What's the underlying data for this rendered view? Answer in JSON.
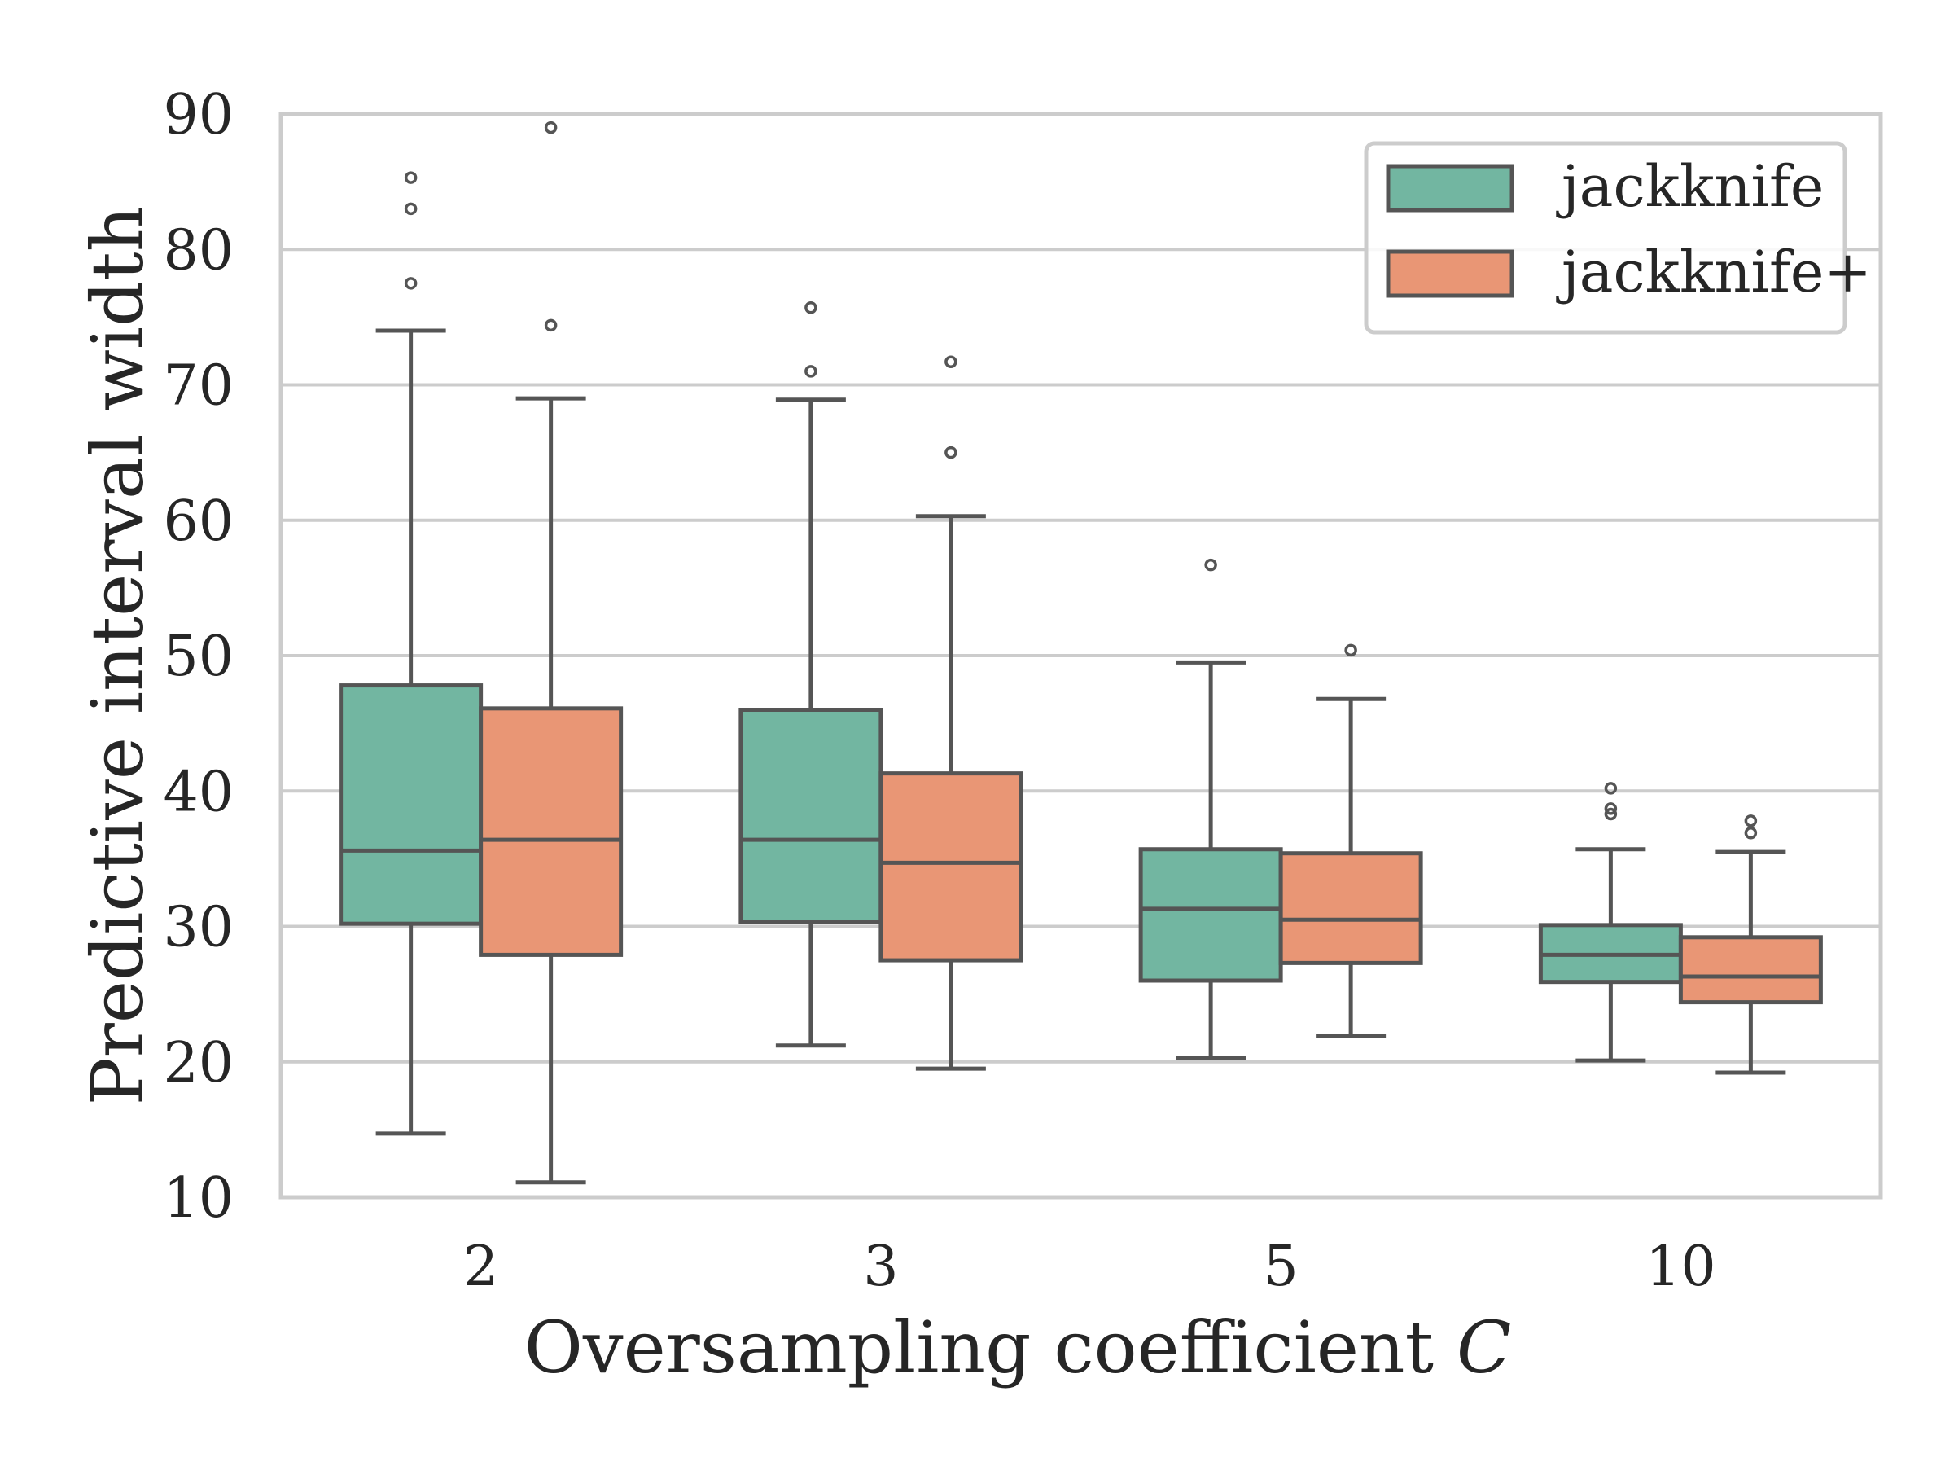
{
  "chart_data": {
    "type": "box",
    "xlabel": "Oversampling coefficient",
    "xlabel_symbol": "C",
    "ylabel": "Predictive interval width",
    "ylim": [
      10,
      90
    ],
    "yticks": [
      10,
      20,
      30,
      40,
      50,
      60,
      70,
      80,
      90
    ],
    "grid": "horizontal",
    "legend_position": "top-right",
    "categories": [
      "2",
      "3",
      "5",
      "10"
    ],
    "series": [
      {
        "name": "jackknife",
        "color": "#72b6a1",
        "boxes": [
          {
            "whislo": 14.7,
            "q1": 30.2,
            "median": 35.6,
            "q3": 47.8,
            "whishi": 74.0,
            "fliers": [
              77.5,
              83.0,
              85.3
            ]
          },
          {
            "whislo": 21.2,
            "q1": 30.3,
            "median": 36.4,
            "q3": 46.0,
            "whishi": 68.9,
            "fliers": [
              71.0,
              75.7
            ]
          },
          {
            "whislo": 20.3,
            "q1": 26.0,
            "median": 31.3,
            "q3": 35.7,
            "whishi": 49.5,
            "fliers": [
              56.7
            ]
          },
          {
            "whislo": 20.1,
            "q1": 25.9,
            "median": 27.9,
            "q3": 30.1,
            "whishi": 35.7,
            "fliers": [
              38.3,
              38.7,
              40.2
            ]
          }
        ]
      },
      {
        "name": "jackknife+",
        "color": "#e99675",
        "boxes": [
          {
            "whislo": 11.1,
            "q1": 27.9,
            "median": 36.4,
            "q3": 46.1,
            "whishi": 69.0,
            "fliers": [
              74.4,
              89.0
            ]
          },
          {
            "whislo": 19.5,
            "q1": 27.5,
            "median": 34.7,
            "q3": 41.3,
            "whishi": 60.3,
            "fliers": [
              65.0,
              71.7
            ]
          },
          {
            "whislo": 21.9,
            "q1": 27.3,
            "median": 30.5,
            "q3": 35.4,
            "whishi": 46.8,
            "fliers": [
              50.4
            ]
          },
          {
            "whislo": 19.2,
            "q1": 24.4,
            "median": 26.3,
            "q3": 29.2,
            "whishi": 35.5,
            "fliers": [
              36.9,
              37.8
            ]
          }
        ]
      }
    ]
  },
  "colors": {
    "edge": "#555555",
    "grid": "#cccccc",
    "frame": "#cccccc",
    "text": "#262626"
  }
}
